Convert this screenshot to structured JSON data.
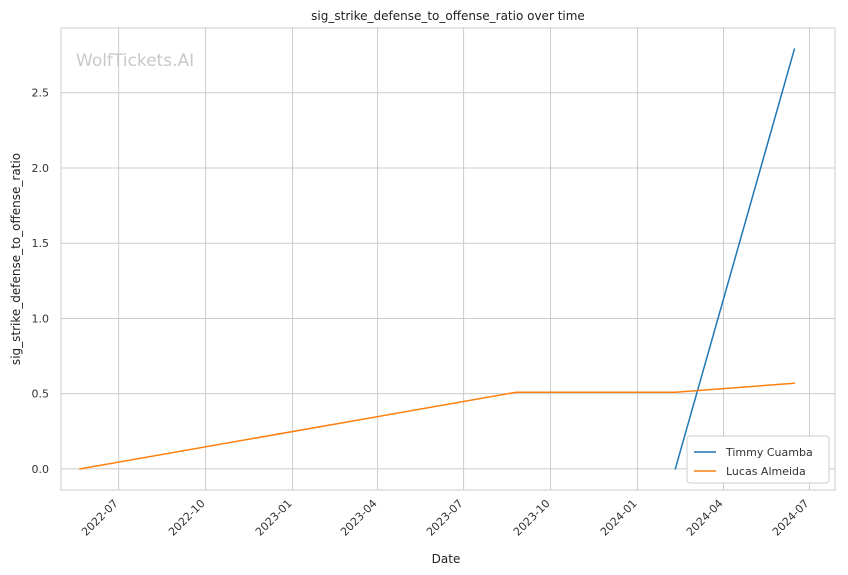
{
  "chart_data": {
    "type": "line",
    "title": "sig_strike_defense_to_offense_ratio over time",
    "xlabel": "Date",
    "ylabel": "sig_strike_defense_to_offense_ratio",
    "watermark": "WolfTickets.AI",
    "x_ticks": [
      "2022-07",
      "2022-10",
      "2023-01",
      "2023-04",
      "2023-07",
      "2023-10",
      "2024-01",
      "2024-04",
      "2024-07"
    ],
    "y_ticks": [
      "0.0",
      "0.5",
      "1.0",
      "1.5",
      "2.0",
      "2.5"
    ],
    "xlim": [
      "2022-05-01",
      "2024-07-28"
    ],
    "ylim": [
      -0.14,
      2.93
    ],
    "grid": true,
    "legend_position": "lower right",
    "series": [
      {
        "name": "Timmy Cuamba",
        "color": "#1f77b4",
        "points": [
          {
            "x": "2024-02-10",
            "y": 0.0
          },
          {
            "x": "2024-06-15",
            "y": 2.79
          }
        ]
      },
      {
        "name": "Lucas Almeida",
        "color": "#ff7f0e",
        "points": [
          {
            "x": "2022-05-21",
            "y": 0.0
          },
          {
            "x": "2023-08-26",
            "y": 0.51
          },
          {
            "x": "2024-02-10",
            "y": 0.51
          },
          {
            "x": "2024-06-15",
            "y": 0.57
          }
        ]
      }
    ]
  }
}
